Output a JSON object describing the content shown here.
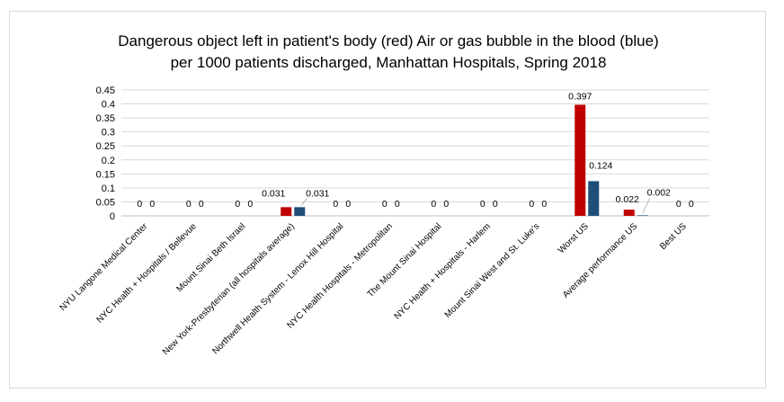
{
  "chart_data": {
    "type": "bar",
    "title": "Dangerous object left in patient's body (red) Air or gas bubble in the blood (blue)",
    "subtitle": "per 1000 patients discharged, Manhattan Hospitals,  Spring 2018",
    "categories": [
      "NYU Langone Medical Center",
      "NYC Health + Hospitals / Bellevue",
      "Mount Sinai Beth Israel",
      "New York-Presbyterian (all hospitals average)",
      "Northwell Health System - Lenox Hill Hospital",
      "NYC Health Hospitals - Metropolitan",
      "The Mount Sinai Hospital",
      "NYC Health + Hospitals - Harlem",
      "Mount Sinai West and  St. Luke's",
      "Worst US",
      "Average performance US",
      "Best US"
    ],
    "series": [
      {
        "color": "#c00000",
        "values": [
          0,
          0,
          0,
          0.031,
          0,
          0,
          0,
          0,
          0,
          0.397,
          0.022,
          0
        ],
        "labels": [
          "0",
          "0",
          "0",
          "0.031",
          "0",
          "0",
          "0",
          "0",
          "0",
          "0.397",
          "0.022",
          "0"
        ]
      },
      {
        "color": "#1f4e79",
        "values": [
          0,
          0,
          0,
          0.031,
          0,
          0,
          0,
          0,
          0,
          0.124,
          0.002,
          0
        ],
        "labels": [
          "0",
          "0",
          "0",
          "0.031",
          "0",
          "0",
          "0",
          "0",
          "0",
          "0.124",
          "0.002",
          "0"
        ]
      }
    ],
    "ylim": [
      0,
      0.45
    ],
    "yticks": [
      "0",
      "0.05",
      "0.1",
      "0.15",
      "0.2",
      "0.25",
      "0.3",
      "0.35",
      "0.4",
      "0.45"
    ],
    "grid": true,
    "legend": "none",
    "xlabel": "",
    "ylabel": ""
  }
}
